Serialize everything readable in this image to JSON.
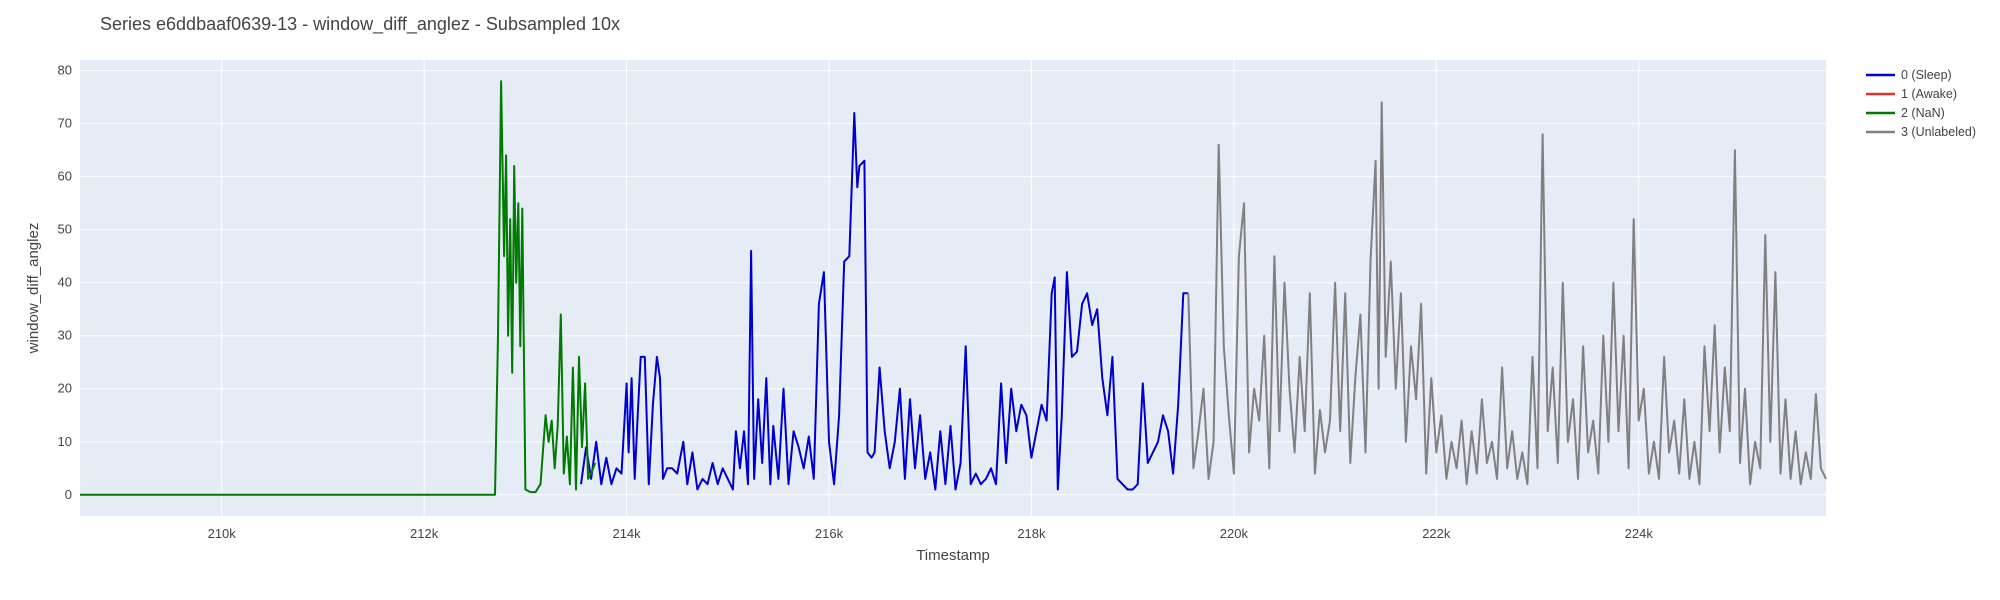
{
  "chart_data": {
    "type": "line",
    "title": "Series e6ddbaaf0639-13 - window_diff_anglez - Subsampled 10x",
    "xlabel": "Timestamp",
    "ylabel": "window_diff_anglez",
    "xlim": [
      208600,
      225850
    ],
    "ylim": [
      -4,
      82
    ],
    "x_ticks": [
      210000,
      212000,
      214000,
      216000,
      218000,
      220000,
      222000,
      224000
    ],
    "x_tick_labels": [
      "210k",
      "212k",
      "214k",
      "216k",
      "218k",
      "220k",
      "222k",
      "224k"
    ],
    "y_ticks": [
      0,
      10,
      20,
      30,
      40,
      50,
      60,
      70,
      80
    ],
    "y_tick_labels": [
      "0",
      "10",
      "20",
      "30",
      "40",
      "50",
      "60",
      "70",
      "80"
    ],
    "grid": true,
    "plot_background": "#e5ecf6",
    "legend_position": "top-right",
    "series": [
      {
        "name": "0 (Sleep)",
        "color": "#0000cc",
        "points": [
          [
            213550,
            2
          ],
          [
            213600,
            9
          ],
          [
            213650,
            3
          ],
          [
            213700,
            10
          ],
          [
            213750,
            2
          ],
          [
            213800,
            7
          ],
          [
            213850,
            2
          ],
          [
            213900,
            5
          ],
          [
            213950,
            4
          ],
          [
            214000,
            21
          ],
          [
            214020,
            8
          ],
          [
            214050,
            22
          ],
          [
            214080,
            3
          ],
          [
            214110,
            15
          ],
          [
            214140,
            26
          ],
          [
            214180,
            26
          ],
          [
            214220,
            2
          ],
          [
            214260,
            17
          ],
          [
            214300,
            26
          ],
          [
            214330,
            22
          ],
          [
            214360,
            3
          ],
          [
            214400,
            5
          ],
          [
            214450,
            5
          ],
          [
            214500,
            4
          ],
          [
            214560,
            10
          ],
          [
            214600,
            2
          ],
          [
            214650,
            8
          ],
          [
            214700,
            1
          ],
          [
            214750,
            3
          ],
          [
            214800,
            2
          ],
          [
            214850,
            6
          ],
          [
            214900,
            2
          ],
          [
            214950,
            5
          ],
          [
            215000,
            3
          ],
          [
            215050,
            1
          ],
          [
            215080,
            12
          ],
          [
            215120,
            5
          ],
          [
            215160,
            12
          ],
          [
            215200,
            2
          ],
          [
            215230,
            46
          ],
          [
            215260,
            3
          ],
          [
            215300,
            18
          ],
          [
            215340,
            6
          ],
          [
            215380,
            22
          ],
          [
            215420,
            2
          ],
          [
            215450,
            13
          ],
          [
            215500,
            3
          ],
          [
            215550,
            20
          ],
          [
            215600,
            2
          ],
          [
            215650,
            12
          ],
          [
            215700,
            9
          ],
          [
            215750,
            5
          ],
          [
            215800,
            11
          ],
          [
            215850,
            3
          ],
          [
            215900,
            36
          ],
          [
            215950,
            42
          ],
          [
            216000,
            10
          ],
          [
            216050,
            2
          ],
          [
            216100,
            15
          ],
          [
            216150,
            44
          ],
          [
            216200,
            45
          ],
          [
            216250,
            72
          ],
          [
            216280,
            58
          ],
          [
            216300,
            62
          ],
          [
            216350,
            63
          ],
          [
            216380,
            8
          ],
          [
            216420,
            7
          ],
          [
            216450,
            8
          ],
          [
            216500,
            24
          ],
          [
            216550,
            12
          ],
          [
            216600,
            5
          ],
          [
            216650,
            10
          ],
          [
            216700,
            20
          ],
          [
            216750,
            3
          ],
          [
            216800,
            18
          ],
          [
            216850,
            5
          ],
          [
            216900,
            15
          ],
          [
            216950,
            3
          ],
          [
            217000,
            8
          ],
          [
            217050,
            1
          ],
          [
            217100,
            12
          ],
          [
            217150,
            2
          ],
          [
            217200,
            13
          ],
          [
            217250,
            1
          ],
          [
            217300,
            6
          ],
          [
            217350,
            28
          ],
          [
            217400,
            2
          ],
          [
            217450,
            4
          ],
          [
            217500,
            2
          ],
          [
            217550,
            3
          ],
          [
            217600,
            5
          ],
          [
            217650,
            2
          ],
          [
            217700,
            21
          ],
          [
            217750,
            6
          ],
          [
            217800,
            20
          ],
          [
            217850,
            12
          ],
          [
            217900,
            17
          ],
          [
            217950,
            15
          ],
          [
            218000,
            7
          ],
          [
            218050,
            12
          ],
          [
            218100,
            17
          ],
          [
            218150,
            14
          ],
          [
            218200,
            38
          ],
          [
            218230,
            41
          ],
          [
            218260,
            1
          ],
          [
            218300,
            15
          ],
          [
            218350,
            42
          ],
          [
            218400,
            26
          ],
          [
            218450,
            27
          ],
          [
            218500,
            36
          ],
          [
            218550,
            38
          ],
          [
            218600,
            32
          ],
          [
            218650,
            35
          ],
          [
            218700,
            22
          ],
          [
            218750,
            15
          ],
          [
            218800,
            26
          ],
          [
            218850,
            3
          ],
          [
            218900,
            2
          ],
          [
            218950,
            1
          ],
          [
            219000,
            1
          ],
          [
            219050,
            2
          ],
          [
            219100,
            21
          ],
          [
            219150,
            6
          ],
          [
            219200,
            8
          ],
          [
            219250,
            10
          ],
          [
            219300,
            15
          ],
          [
            219350,
            12
          ],
          [
            219400,
            4
          ],
          [
            219450,
            17
          ],
          [
            219500,
            38
          ],
          [
            219550,
            38
          ]
        ]
      },
      {
        "name": "1 (Awake)",
        "color": "#e8302a",
        "points": []
      },
      {
        "name": "2 (NaN)",
        "color": "#007a00",
        "points": [
          [
            208600,
            0
          ],
          [
            212700,
            0
          ],
          [
            212730,
            30
          ],
          [
            212760,
            78
          ],
          [
            212790,
            45
          ],
          [
            212810,
            64
          ],
          [
            212830,
            30
          ],
          [
            212850,
            52
          ],
          [
            212870,
            23
          ],
          [
            212890,
            62
          ],
          [
            212910,
            40
          ],
          [
            212930,
            55
          ],
          [
            212950,
            28
          ],
          [
            212970,
            54
          ],
          [
            213000,
            1
          ],
          [
            213050,
            0.5
          ],
          [
            213100,
            0.5
          ],
          [
            213150,
            2
          ],
          [
            213200,
            15
          ],
          [
            213230,
            10
          ],
          [
            213260,
            14
          ],
          [
            213290,
            5
          ],
          [
            213320,
            13
          ],
          [
            213350,
            34
          ],
          [
            213380,
            4
          ],
          [
            213410,
            11
          ],
          [
            213440,
            2
          ],
          [
            213470,
            24
          ],
          [
            213500,
            1
          ],
          [
            213530,
            26
          ],
          [
            213560,
            9
          ],
          [
            213590,
            21
          ],
          [
            213620,
            3
          ],
          [
            213650,
            4
          ],
          [
            213690,
            6
          ]
        ]
      },
      {
        "name": "3 (Unlabeled)",
        "color": "#808080",
        "points": [
          [
            219550,
            38
          ],
          [
            219600,
            5
          ],
          [
            219650,
            12
          ],
          [
            219700,
            20
          ],
          [
            219750,
            3
          ],
          [
            219800,
            10
          ],
          [
            219850,
            66
          ],
          [
            219900,
            28
          ],
          [
            219950,
            15
          ],
          [
            220000,
            4
          ],
          [
            220050,
            45
          ],
          [
            220100,
            55
          ],
          [
            220150,
            8
          ],
          [
            220200,
            20
          ],
          [
            220250,
            14
          ],
          [
            220300,
            30
          ],
          [
            220350,
            5
          ],
          [
            220400,
            45
          ],
          [
            220450,
            12
          ],
          [
            220500,
            40
          ],
          [
            220550,
            20
          ],
          [
            220600,
            8
          ],
          [
            220650,
            26
          ],
          [
            220700,
            12
          ],
          [
            220750,
            38
          ],
          [
            220800,
            4
          ],
          [
            220850,
            16
          ],
          [
            220900,
            8
          ],
          [
            220950,
            14
          ],
          [
            221000,
            40
          ],
          [
            221050,
            12
          ],
          [
            221100,
            38
          ],
          [
            221150,
            6
          ],
          [
            221200,
            22
          ],
          [
            221250,
            34
          ],
          [
            221300,
            8
          ],
          [
            221350,
            44
          ],
          [
            221400,
            63
          ],
          [
            221430,
            20
          ],
          [
            221460,
            74
          ],
          [
            221500,
            26
          ],
          [
            221550,
            44
          ],
          [
            221600,
            20
          ],
          [
            221650,
            38
          ],
          [
            221700,
            10
          ],
          [
            221750,
            28
          ],
          [
            221800,
            18
          ],
          [
            221850,
            36
          ],
          [
            221900,
            4
          ],
          [
            221950,
            22
          ],
          [
            222000,
            8
          ],
          [
            222050,
            15
          ],
          [
            222100,
            3
          ],
          [
            222150,
            10
          ],
          [
            222200,
            5
          ],
          [
            222250,
            14
          ],
          [
            222300,
            2
          ],
          [
            222350,
            12
          ],
          [
            222400,
            4
          ],
          [
            222450,
            18
          ],
          [
            222500,
            6
          ],
          [
            222550,
            10
          ],
          [
            222600,
            3
          ],
          [
            222650,
            24
          ],
          [
            222700,
            5
          ],
          [
            222750,
            12
          ],
          [
            222800,
            3
          ],
          [
            222850,
            8
          ],
          [
            222900,
            2
          ],
          [
            222950,
            26
          ],
          [
            223000,
            5
          ],
          [
            223050,
            68
          ],
          [
            223100,
            12
          ],
          [
            223150,
            24
          ],
          [
            223200,
            6
          ],
          [
            223250,
            40
          ],
          [
            223300,
            10
          ],
          [
            223350,
            18
          ],
          [
            223400,
            3
          ],
          [
            223450,
            28
          ],
          [
            223500,
            8
          ],
          [
            223550,
            14
          ],
          [
            223600,
            4
          ],
          [
            223650,
            30
          ],
          [
            223700,
            10
          ],
          [
            223750,
            40
          ],
          [
            223800,
            12
          ],
          [
            223850,
            30
          ],
          [
            223900,
            5
          ],
          [
            223950,
            52
          ],
          [
            224000,
            14
          ],
          [
            224050,
            20
          ],
          [
            224100,
            4
          ],
          [
            224150,
            10
          ],
          [
            224200,
            3
          ],
          [
            224250,
            26
          ],
          [
            224300,
            8
          ],
          [
            224350,
            14
          ],
          [
            224400,
            4
          ],
          [
            224450,
            18
          ],
          [
            224500,
            3
          ],
          [
            224550,
            10
          ],
          [
            224600,
            2
          ],
          [
            224650,
            28
          ],
          [
            224700,
            12
          ],
          [
            224750,
            32
          ],
          [
            224800,
            8
          ],
          [
            224850,
            24
          ],
          [
            224900,
            12
          ],
          [
            224950,
            65
          ],
          [
            225000,
            6
          ],
          [
            225050,
            20
          ],
          [
            225100,
            2
          ],
          [
            225150,
            10
          ],
          [
            225200,
            5
          ],
          [
            225250,
            49
          ],
          [
            225300,
            10
          ],
          [
            225350,
            42
          ],
          [
            225400,
            4
          ],
          [
            225450,
            18
          ],
          [
            225500,
            3
          ],
          [
            225550,
            12
          ],
          [
            225600,
            2
          ],
          [
            225650,
            8
          ],
          [
            225700,
            3
          ],
          [
            225750,
            19
          ],
          [
            225800,
            5
          ],
          [
            225850,
            3
          ]
        ]
      }
    ]
  }
}
